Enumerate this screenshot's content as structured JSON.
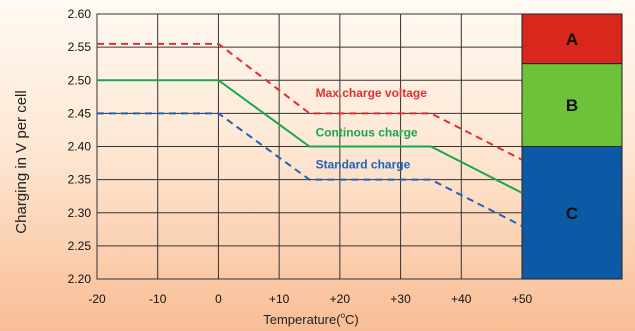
{
  "chart_data": {
    "type": "line",
    "title": "",
    "xlabel_main": "Temperature(",
    "xlabel_sup": "o",
    "xlabel_end": "C)",
    "ylabel": "Charging in V per cell",
    "xlim": [
      -20,
      50
    ],
    "ylim": [
      2.2,
      2.6
    ],
    "grid": true,
    "x_ticks": [
      "-20",
      "-10",
      "0",
      "+10",
      "+20",
      "+30",
      "+40",
      "+50"
    ],
    "x_tick_values": [
      -20,
      -10,
      0,
      10,
      20,
      30,
      40,
      50
    ],
    "y_ticks": [
      "2.60",
      "2.55",
      "2.50",
      "2.45",
      "2.40",
      "2.35",
      "2.30",
      "2.25",
      "2.20"
    ],
    "y_tick_values": [
      2.6,
      2.55,
      2.5,
      2.45,
      2.4,
      2.35,
      2.3,
      2.25,
      2.2
    ],
    "series": [
      {
        "name": "Max.charge voltage",
        "color": "#e03030",
        "style": "dashed",
        "x": [
          -20,
          0,
          15,
          35,
          50
        ],
        "y": [
          2.555,
          2.555,
          2.45,
          2.45,
          2.38
        ],
        "label_at": [
          16,
          2.475
        ]
      },
      {
        "name": "Continous charge",
        "color": "#1aa84a",
        "style": "solid",
        "x": [
          -20,
          0,
          15,
          35,
          50
        ],
        "y": [
          2.5,
          2.5,
          2.4,
          2.4,
          2.33
        ],
        "label_at": [
          16,
          2.415
        ]
      },
      {
        "name": "Standard charge",
        "color": "#1f63b8",
        "style": "dashed",
        "x": [
          -20,
          0,
          15,
          35,
          50
        ],
        "y": [
          2.45,
          2.45,
          2.35,
          2.35,
          2.28
        ],
        "label_at": [
          16,
          2.367
        ]
      }
    ],
    "zones": [
      {
        "name": "A",
        "color": "#d9271e",
        "from": 2.6,
        "to": 2.525
      },
      {
        "name": "B",
        "color": "#6ec23a",
        "from": 2.525,
        "to": 2.4
      },
      {
        "name": "C",
        "color": "#0c5aa6",
        "from": 2.4,
        "to": 2.2
      }
    ]
  }
}
